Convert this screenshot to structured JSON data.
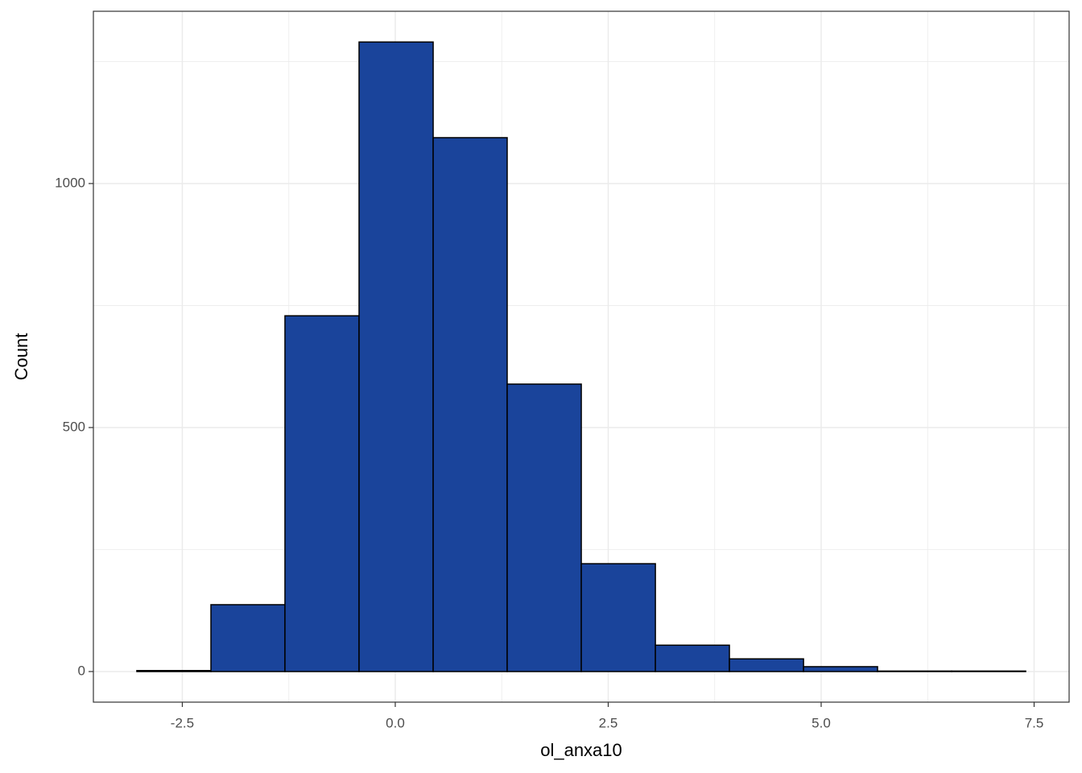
{
  "chart_data": {
    "type": "histogram",
    "x_label": "ol_anxa10",
    "y_label": "Count",
    "bins": [
      -3.034,
      -2.164,
      -1.295,
      -0.425,
      0.445,
      1.314,
      2.184,
      3.054,
      3.923,
      4.793,
      5.662,
      6.532,
      7.401
    ],
    "counts": [
      2,
      137,
      729,
      1290,
      1094,
      589,
      221,
      54,
      26,
      10,
      1,
      1
    ],
    "color": "#1a449b",
    "edge_color": "#000000",
    "xlim": [
      -3.544,
      7.911
    ],
    "ylim": [
      -62.7,
      1353
    ],
    "xticks": [
      -2.5,
      {
        "value": 0,
        "label": "0.0"
      },
      2.5,
      {
        "value": 5,
        "label": "5.0"
      },
      7.5
    ],
    "yticks": [
      0,
      500,
      1000
    ],
    "minor_xticks": [
      -1.25,
      1.25,
      3.75,
      6.25
    ],
    "minor_yticks": [
      250,
      750,
      1250
    ],
    "grid": true
  }
}
